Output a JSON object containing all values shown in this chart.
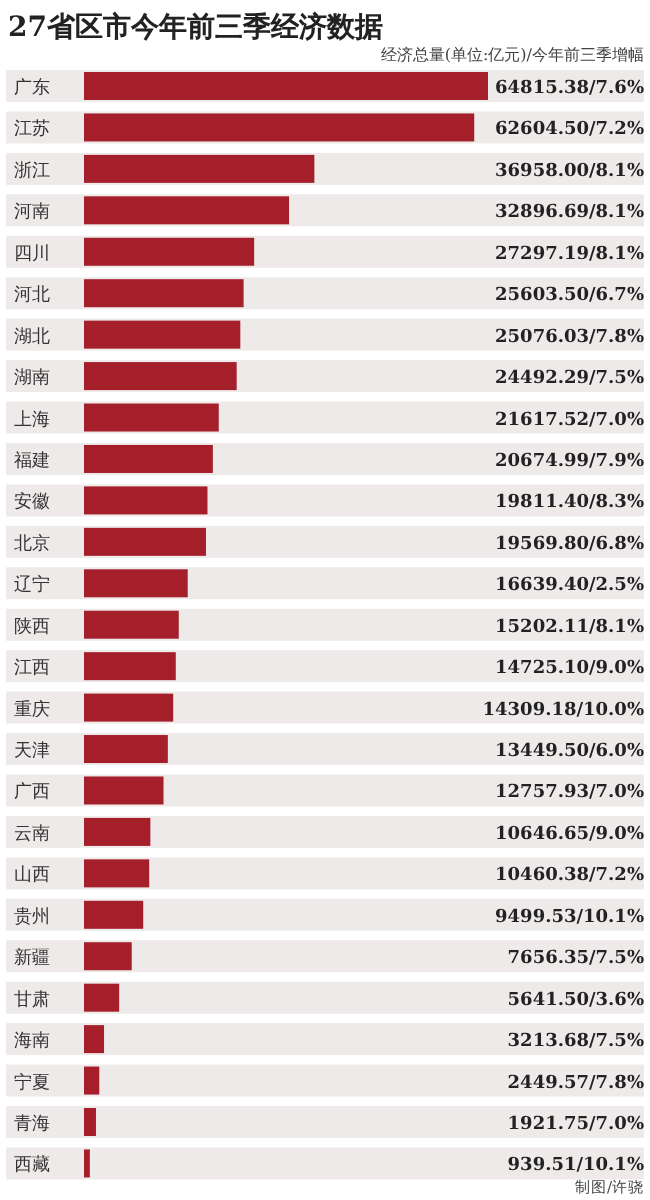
{
  "chart_data": {
    "type": "bar",
    "orientation": "horizontal",
    "title": "27省区市今年前三季经济数据",
    "subtitle": "经济总量(单位:亿元)/今年前三季增幅",
    "categories": [
      "广东",
      "江苏",
      "浙江",
      "河南",
      "四川",
      "河北",
      "湖北",
      "湖南",
      "上海",
      "福建",
      "安徽",
      "北京",
      "辽宁",
      "陕西",
      "江西",
      "重庆",
      "天津",
      "广西",
      "云南",
      "山西",
      "贵州",
      "新疆",
      "甘肃",
      "海南",
      "宁夏",
      "青海",
      "西藏"
    ],
    "values": [
      64815.38,
      62604.5,
      36958.0,
      32896.69,
      27297.19,
      25603.5,
      25076.03,
      24492.29,
      21617.52,
      20674.99,
      19811.4,
      19569.8,
      16639.4,
      15202.11,
      14725.1,
      14309.18,
      13449.5,
      12757.93,
      10646.65,
      10460.38,
      9499.53,
      7656.35,
      5641.5,
      3213.68,
      2449.57,
      1921.75,
      939.51
    ],
    "value_labels": [
      "64815.38/7.6%",
      "62604.50/7.2%",
      "36958.00/8.1%",
      "32896.69/8.1%",
      "27297.19/8.1%",
      "25603.50/6.7%",
      "25076.03/7.8%",
      "24492.29/7.5%",
      "21617.52/7.0%",
      "20674.99/7.9%",
      "19811.40/8.3%",
      "19569.80/6.8%",
      "16639.40/2.5%",
      "15202.11/8.1%",
      "14725.10/9.0%",
      "14309.18/10.0%",
      "13449.50/6.0%",
      "12757.93/7.0%",
      "10646.65/9.0%",
      "10460.38/7.2%",
      "9499.53/10.1%",
      "7656.35/7.5%",
      "5641.50/3.6%",
      "3213.68/7.5%",
      "2449.57/7.8%",
      "1921.75/7.0%",
      "939.51/10.1%"
    ],
    "color": "#a51f2b",
    "annotations": [
      "制图/许骁"
    ]
  }
}
